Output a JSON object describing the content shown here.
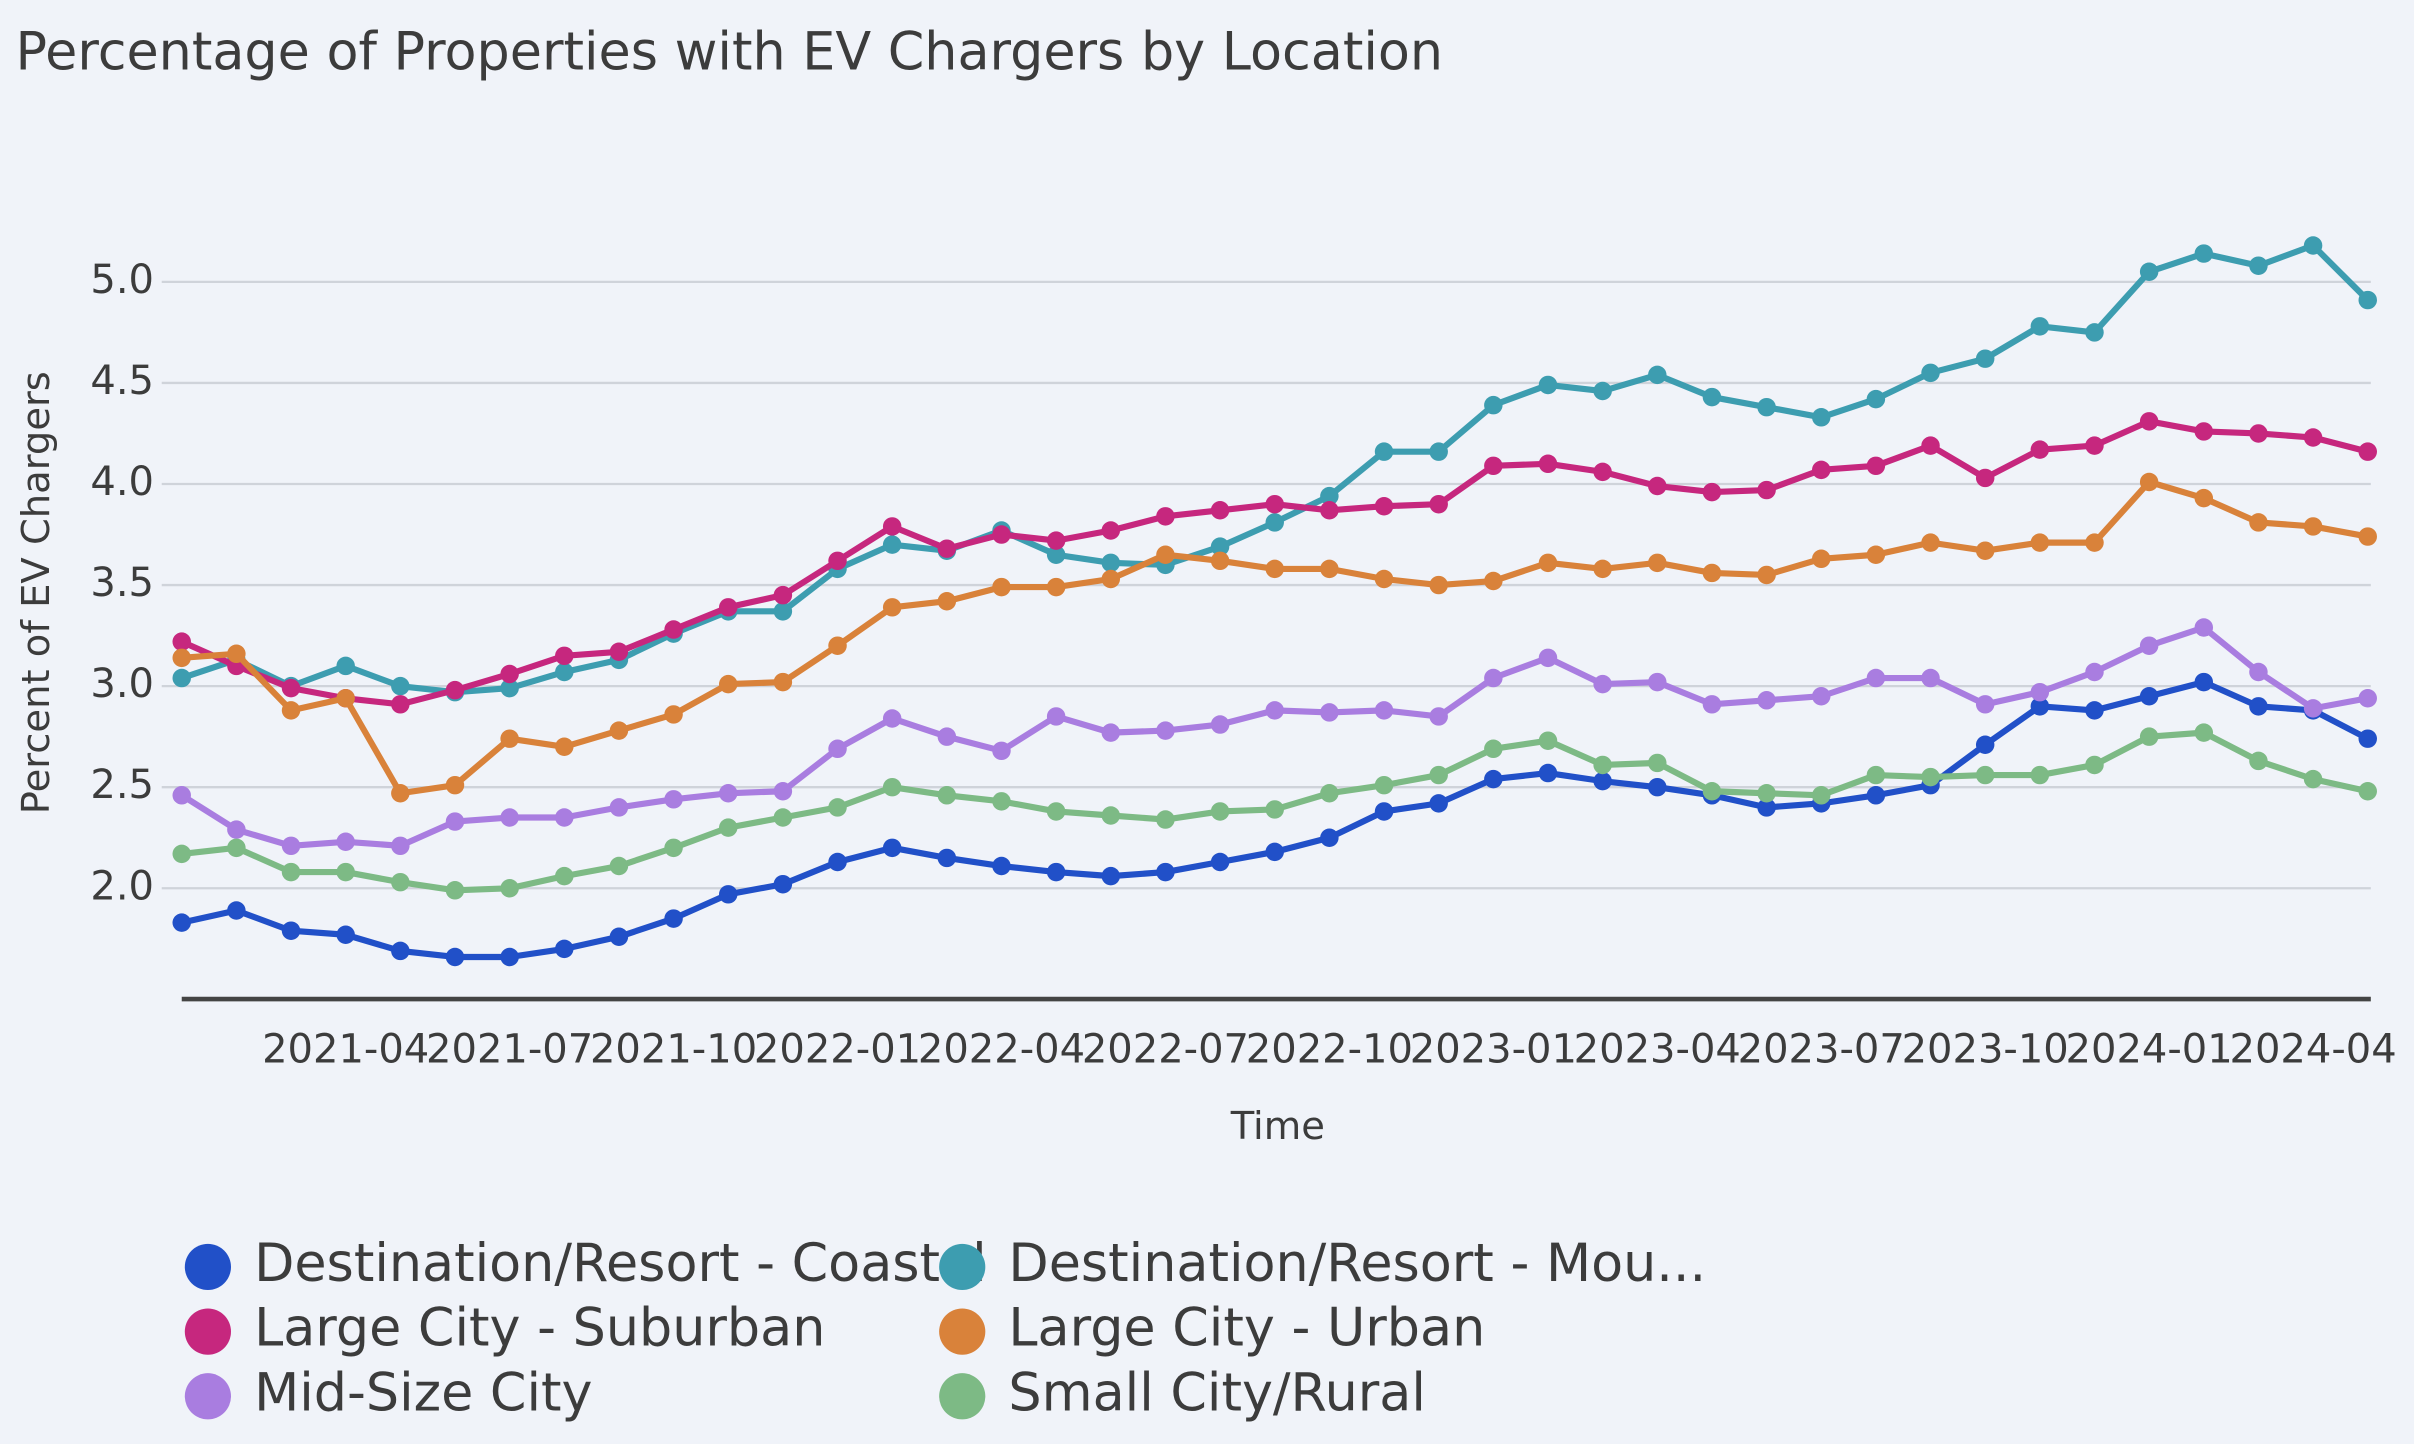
{
  "chart_data": {
    "type": "line",
    "title": "Percentage of Properties with EV Chargers by Location",
    "x_label": "Time",
    "y_label": "Percent of EV Chargers",
    "x": [
      "2021-01",
      "2021-02",
      "2021-03",
      "2021-04",
      "2021-05",
      "2021-06",
      "2021-07",
      "2021-08",
      "2021-09",
      "2021-10",
      "2021-11",
      "2021-12",
      "2022-01",
      "2022-02",
      "2022-03",
      "2022-04",
      "2022-05",
      "2022-06",
      "2022-07",
      "2022-08",
      "2022-09",
      "2022-10",
      "2022-11",
      "2022-12",
      "2023-01",
      "2023-02",
      "2023-03",
      "2023-04",
      "2023-05",
      "2023-06",
      "2023-07",
      "2023-08",
      "2023-09",
      "2023-10",
      "2023-11",
      "2023-12",
      "2024-01",
      "2024-02",
      "2024-03",
      "2024-04",
      "2024-05"
    ],
    "xlim": [
      "2021-01",
      "2024-05"
    ],
    "xticks": [
      "2021-04",
      "2021-07",
      "2021-10",
      "2022-01",
      "2022-04",
      "2022-07",
      "2022-10",
      "2023-01",
      "2023-04",
      "2023-07",
      "2023-10",
      "2024-01",
      "2024-04"
    ],
    "ylim": [
      1.45,
      5.35
    ],
    "yticks": [
      {
        "value": 2,
        "label": "2.0"
      },
      2.5,
      {
        "value": 3,
        "label": "3.0"
      },
      3.5,
      {
        "value": 4,
        "label": "4.0"
      },
      4.5,
      {
        "value": 5,
        "label": "5.0"
      }
    ],
    "grid": true,
    "legend": "bottom",
    "series": [
      {
        "name": "Destination/Resort - Coastal",
        "color": "#2150c8",
        "values": [
          1.83,
          1.89,
          1.79,
          1.77,
          1.69,
          1.66,
          1.66,
          1.7,
          1.76,
          1.85,
          1.97,
          2.02,
          2.13,
          2.2,
          2.15,
          2.11,
          2.08,
          2.06,
          2.08,
          2.13,
          2.18,
          2.25,
          2.38,
          2.42,
          2.54,
          2.57,
          2.53,
          2.5,
          2.46,
          2.4,
          2.42,
          2.46,
          2.51,
          2.71,
          2.9,
          2.88,
          2.95,
          3.02,
          2.9,
          2.88,
          2.74
        ]
      },
      {
        "name": "Destination/Resort - Mou...",
        "color": "#3d9db0",
        "values": [
          3.04,
          3.13,
          3.0,
          3.1,
          3.0,
          2.97,
          2.99,
          3.07,
          3.13,
          3.26,
          3.37,
          3.37,
          3.58,
          3.7,
          3.67,
          3.77,
          3.65,
          3.61,
          3.6,
          3.69,
          3.81,
          3.94,
          4.16,
          4.16,
          4.39,
          4.49,
          4.46,
          4.54,
          4.43,
          4.38,
          4.33,
          4.42,
          4.55,
          4.62,
          4.78,
          4.75,
          5.05,
          5.14,
          5.08,
          5.18,
          4.91
        ]
      },
      {
        "name": "Large City - Suburban",
        "color": "#c6277e",
        "values": [
          3.22,
          3.1,
          2.99,
          2.94,
          2.91,
          2.98,
          3.06,
          3.15,
          3.17,
          3.28,
          3.39,
          3.45,
          3.62,
          3.79,
          3.68,
          3.75,
          3.72,
          3.77,
          3.84,
          3.87,
          3.9,
          3.87,
          3.89,
          3.9,
          4.09,
          4.1,
          4.06,
          3.99,
          3.96,
          3.97,
          4.07,
          4.09,
          4.19,
          4.03,
          4.17,
          4.19,
          4.31,
          4.26,
          4.25,
          4.23,
          4.16
        ]
      },
      {
        "name": "Large City - Urban",
        "color": "#d9823a",
        "values": [
          3.14,
          3.16,
          2.88,
          2.94,
          2.47,
          2.51,
          2.74,
          2.7,
          2.78,
          2.86,
          3.01,
          3.02,
          3.2,
          3.39,
          3.42,
          3.49,
          3.49,
          3.53,
          3.65,
          3.62,
          3.58,
          3.58,
          3.53,
          3.5,
          3.52,
          3.61,
          3.58,
          3.61,
          3.56,
          3.55,
          3.63,
          3.65,
          3.71,
          3.67,
          3.71,
          3.71,
          4.01,
          3.93,
          3.81,
          3.79,
          3.74
        ]
      },
      {
        "name": "Mid-Size City",
        "color": "#a97de0",
        "values": [
          2.46,
          2.29,
          2.21,
          2.23,
          2.21,
          2.33,
          2.35,
          2.35,
          2.4,
          2.44,
          2.47,
          2.48,
          2.69,
          2.84,
          2.75,
          2.68,
          2.85,
          2.77,
          2.78,
          2.81,
          2.88,
          2.87,
          2.88,
          2.85,
          3.04,
          3.14,
          3.01,
          3.02,
          2.91,
          2.93,
          2.95,
          3.04,
          3.04,
          2.91,
          2.97,
          3.07,
          3.2,
          3.29,
          3.07,
          2.89,
          2.94
        ]
      },
      {
        "name": "Small City/Rural",
        "color": "#7dba85",
        "values": [
          2.17,
          2.2,
          2.08,
          2.08,
          2.03,
          1.99,
          2.0,
          2.06,
          2.11,
          2.2,
          2.3,
          2.35,
          2.4,
          2.5,
          2.46,
          2.43,
          2.38,
          2.36,
          2.34,
          2.38,
          2.39,
          2.47,
          2.51,
          2.56,
          2.69,
          2.73,
          2.61,
          2.62,
          2.48,
          2.47,
          2.46,
          2.56,
          2.55,
          2.56,
          2.56,
          2.61,
          2.75,
          2.77,
          2.63,
          2.54,
          2.48
        ]
      }
    ]
  }
}
